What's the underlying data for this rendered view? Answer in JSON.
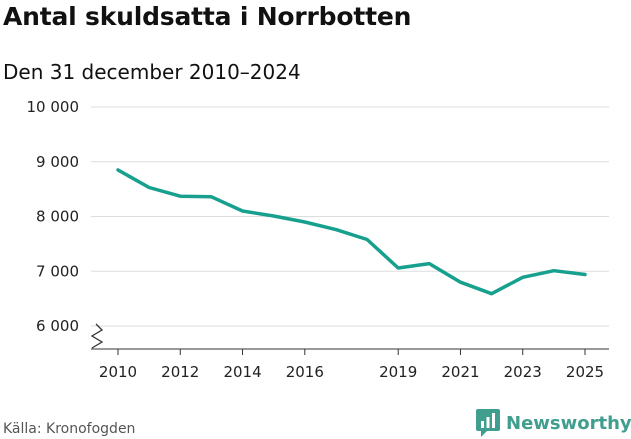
{
  "title": "Antal skuldsatta i Norrbotten",
  "subtitle": "Den 31 december 2010–2024",
  "source": "Källa: Kronofogden",
  "brand": {
    "name": "Newsworthy",
    "color": "#3f9e8e",
    "icon": "newsworthy-chart-logo-icon"
  },
  "chart_data": {
    "type": "line",
    "x": [
      2010,
      2011,
      2012,
      2013,
      2014,
      2015,
      2016,
      2017,
      2018,
      2019,
      2020,
      2021,
      2022,
      2023,
      2024,
      2025
    ],
    "series": [
      {
        "values": [
          8850,
          8530,
          8370,
          8360,
          8100,
          8010,
          7900,
          7760,
          7580,
          7060,
          7140,
          6800,
          6590,
          6890,
          7010,
          6940
        ]
      }
    ],
    "xticks": [
      "2010",
      "2012",
      "2014",
      "2016",
      "2019",
      "2021",
      "2023",
      "2025"
    ],
    "xtick_values": [
      2010,
      2012,
      2014,
      2016,
      2019,
      2021,
      2023,
      2025
    ],
    "yticks": [
      "6 000",
      "7 000",
      "8 000",
      "9 000",
      "10 000"
    ],
    "ytick_values": [
      6000,
      7000,
      8000,
      9000,
      10000
    ],
    "ylim": [
      5550,
      10000
    ],
    "xlim": [
      2010,
      2025
    ],
    "axis_break": true,
    "grid": "horizontal",
    "line_color": "#17a08e",
    "grid_color": "#dddddd",
    "axis_color": "#333333"
  }
}
